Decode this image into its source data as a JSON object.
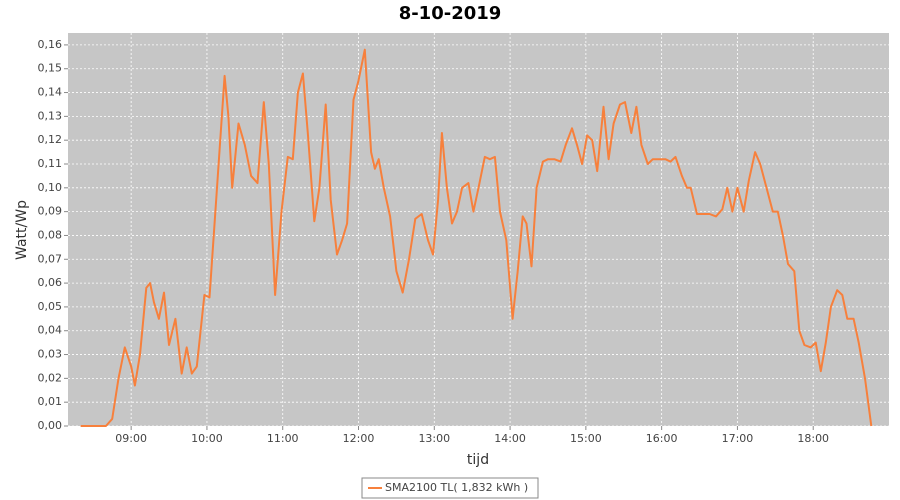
{
  "chart_data": {
    "type": "line",
    "title": "8-10-2019",
    "x_label": "tijd",
    "y_label": "Watt/Wp",
    "x": [
      "08:20",
      "08:30",
      "08:40",
      "08:45",
      "08:50",
      "08:55",
      "09:00",
      "09:03",
      "09:07",
      "09:12",
      "09:15",
      "09:18",
      "09:22",
      "09:26",
      "09:30",
      "09:35",
      "09:40",
      "09:44",
      "09:48",
      "09:52",
      "09:58",
      "10:02",
      "10:08",
      "10:14",
      "10:17",
      "10:20",
      "10:25",
      "10:30",
      "10:35",
      "10:40",
      "10:45",
      "10:49",
      "10:54",
      "10:59",
      "11:04",
      "11:08",
      "11:12",
      "11:16",
      "11:20",
      "11:25",
      "11:29",
      "11:34",
      "11:38",
      "11:43",
      "11:47",
      "11:51",
      "11:56",
      "12:00",
      "12:05",
      "12:10",
      "12:13",
      "12:16",
      "12:20",
      "12:25",
      "12:30",
      "12:35",
      "12:40",
      "12:45",
      "12:50",
      "12:55",
      "12:59",
      "13:03",
      "13:06",
      "13:10",
      "13:14",
      "13:18",
      "13:22",
      "13:27",
      "13:31",
      "13:35",
      "13:40",
      "13:44",
      "13:48",
      "13:52",
      "13:57",
      "14:02",
      "14:06",
      "14:10",
      "14:13",
      "14:17",
      "14:21",
      "14:26",
      "14:30",
      "14:35",
      "14:40",
      "14:44",
      "14:49",
      "14:53",
      "14:57",
      "15:01",
      "15:05",
      "15:09",
      "15:14",
      "15:18",
      "15:22",
      "15:27",
      "15:31",
      "15:36",
      "15:40",
      "15:44",
      "15:49",
      "15:53",
      "15:58",
      "16:03",
      "16:07",
      "16:11",
      "16:16",
      "16:20",
      "16:23",
      "16:28",
      "16:33",
      "16:38",
      "16:43",
      "16:48",
      "16:52",
      "16:56",
      "17:00",
      "17:05",
      "17:09",
      "17:14",
      "17:18",
      "17:23",
      "17:28",
      "17:32",
      "17:36",
      "17:40",
      "17:45",
      "17:49",
      "17:53",
      "17:58",
      "18:02",
      "18:06",
      "18:10",
      "18:14",
      "18:19",
      "18:23",
      "18:27",
      "18:32",
      "18:36",
      "18:41",
      "18:46"
    ],
    "series": [
      {
        "name": "SMA2100 TL( 1,832 kWh )",
        "color": "#f7803c",
        "values": [
          0,
          0,
          0,
          0.003,
          0.02,
          0.033,
          0.025,
          0.017,
          0.03,
          0.058,
          0.06,
          0.052,
          0.045,
          0.056,
          0.034,
          0.045,
          0.022,
          0.033,
          0.022,
          0.025,
          0.055,
          0.054,
          0.1,
          0.147,
          0.13,
          0.1,
          0.127,
          0.118,
          0.105,
          0.102,
          0.136,
          0.11,
          0.055,
          0.09,
          0.113,
          0.112,
          0.14,
          0.148,
          0.122,
          0.086,
          0.1,
          0.135,
          0.095,
          0.072,
          0.078,
          0.085,
          0.137,
          0.145,
          0.158,
          0.115,
          0.108,
          0.112,
          0.1,
          0.088,
          0.065,
          0.056,
          0.07,
          0.087,
          0.089,
          0.078,
          0.072,
          0.095,
          0.123,
          0.1,
          0.085,
          0.09,
          0.1,
          0.102,
          0.09,
          0.1,
          0.113,
          0.112,
          0.113,
          0.09,
          0.078,
          0.045,
          0.065,
          0.088,
          0.085,
          0.067,
          0.1,
          0.111,
          0.112,
          0.112,
          0.111,
          0.118,
          0.125,
          0.118,
          0.11,
          0.122,
          0.12,
          0.107,
          0.134,
          0.112,
          0.127,
          0.135,
          0.136,
          0.123,
          0.134,
          0.118,
          0.11,
          0.112,
          0.112,
          0.112,
          0.111,
          0.113,
          0.105,
          0.1,
          0.1,
          0.089,
          0.089,
          0.089,
          0.088,
          0.091,
          0.1,
          0.09,
          0.1,
          0.09,
          0.103,
          0.115,
          0.11,
          0.1,
          0.09,
          0.09,
          0.08,
          0.068,
          0.065,
          0.04,
          0.034,
          0.033,
          0.035,
          0.023,
          0.035,
          0.05,
          0.057,
          0.055,
          0.045,
          0.045,
          0.035,
          0.02,
          0
        ]
      }
    ],
    "xlim": [
      "08:10",
      "19:00"
    ],
    "xticks": [
      "09:00",
      "10:00",
      "11:00",
      "12:00",
      "13:00",
      "14:00",
      "15:00",
      "16:00",
      "17:00",
      "18:00"
    ],
    "ylim": [
      0,
      0.165
    ],
    "yticks": [
      {
        "value": 0,
        "label": "0,00"
      },
      {
        "value": 0.01,
        "label": "0,01"
      },
      {
        "value": 0.02,
        "label": "0,02"
      },
      {
        "value": 0.03,
        "label": "0,03"
      },
      {
        "value": 0.04,
        "label": "0,04"
      },
      {
        "value": 0.05,
        "label": "0,05"
      },
      {
        "value": 0.06,
        "label": "0,06"
      },
      {
        "value": 0.07,
        "label": "0,07"
      },
      {
        "value": 0.08,
        "label": "0,08"
      },
      {
        "value": 0.09,
        "label": "0,09"
      },
      {
        "value": 0.1,
        "label": "0,10"
      },
      {
        "value": 0.11,
        "label": "0,11"
      },
      {
        "value": 0.12,
        "label": "0,12"
      },
      {
        "value": 0.13,
        "label": "0,13"
      },
      {
        "value": 0.14,
        "label": "0,14"
      },
      {
        "value": 0.15,
        "label": "0,15"
      },
      {
        "value": 0.16,
        "label": "0,16"
      }
    ],
    "grid": true,
    "legend": "bottom"
  }
}
